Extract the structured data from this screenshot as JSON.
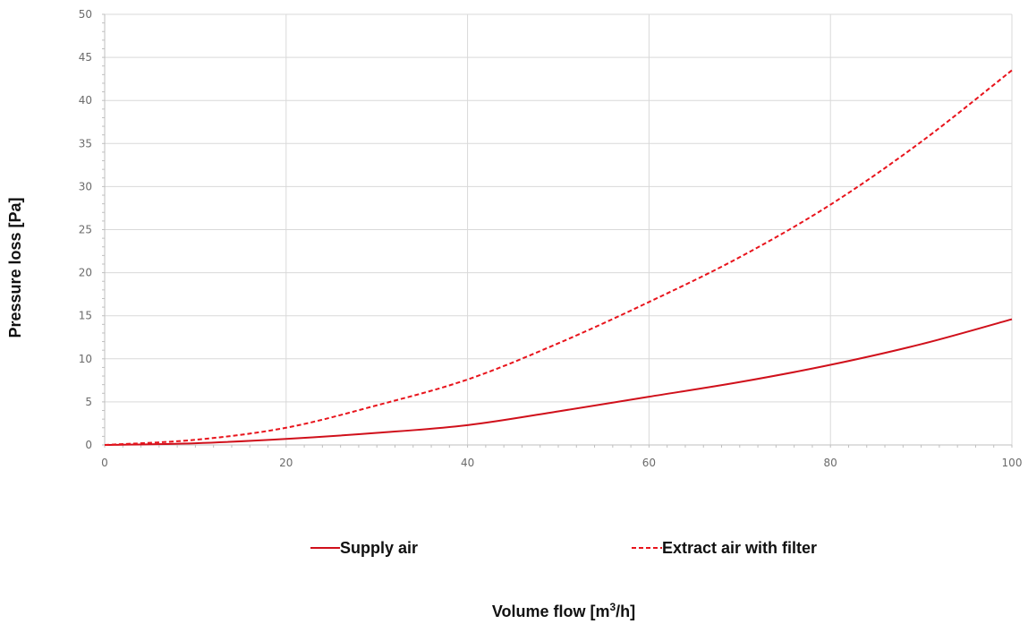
{
  "chart_data": {
    "type": "line",
    "xlabel_main": "Volume flow [m",
    "xlabel_sup": "3",
    "xlabel_end": "/h]",
    "ylabel": "Pressure loss [Pa]",
    "xlim": [
      0,
      100
    ],
    "ylim": [
      0,
      50
    ],
    "xticks": [
      0,
      20,
      40,
      60,
      80,
      100
    ],
    "yticks": [
      0,
      5,
      10,
      15,
      20,
      25,
      30,
      35,
      40,
      45,
      50
    ],
    "grid": true,
    "legend_position": "bottom",
    "series": [
      {
        "name": "Supply air",
        "style": "solid",
        "color": "#d0101b",
        "x": [
          0,
          10,
          20,
          30,
          40,
          50,
          60,
          70,
          80,
          90,
          100
        ],
        "y": [
          0,
          0.2,
          0.7,
          1.4,
          2.3,
          3.9,
          5.6,
          7.3,
          9.3,
          11.7,
          14.6
        ]
      },
      {
        "name": "Extract air with filter",
        "style": "dashed",
        "color": "#e8141c",
        "x": [
          0,
          10,
          20,
          30,
          40,
          50,
          60,
          70,
          80,
          90,
          100
        ],
        "y": [
          0,
          0.6,
          2.0,
          4.6,
          7.6,
          11.8,
          16.6,
          21.8,
          27.9,
          35.2,
          43.5
        ]
      }
    ]
  }
}
